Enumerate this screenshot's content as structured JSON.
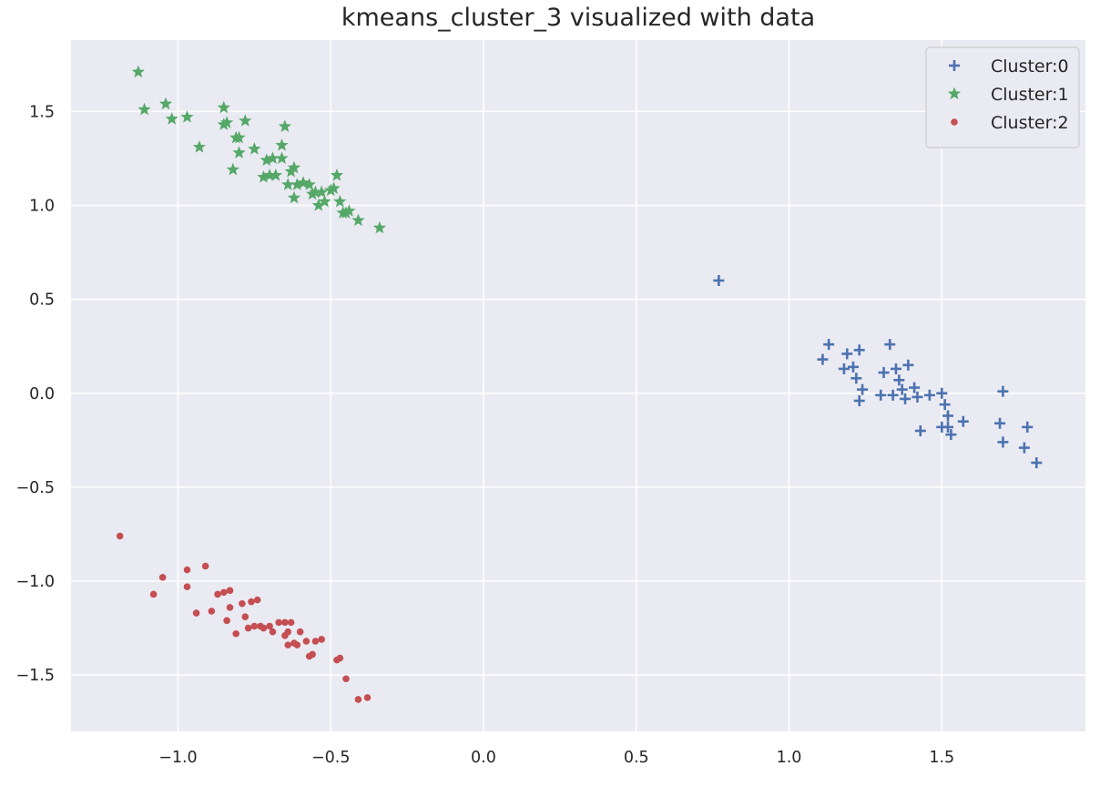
{
  "chart_data": {
    "type": "scatter",
    "title": "kmeans_cluster_3 visualized with data",
    "xlabel": "",
    "ylabel": "",
    "xlim": [
      -1.35,
      1.97
    ],
    "ylim": [
      -1.8,
      1.88
    ],
    "xticks": [
      {
        "value": -1.0,
        "label": "−1.0"
      },
      {
        "value": -0.5,
        "label": "−0.5"
      },
      {
        "value": 0.0,
        "label": "0.0"
      },
      {
        "value": 0.5,
        "label": "0.5"
      },
      {
        "value": 1.0,
        "label": "1.0"
      },
      {
        "value": 1.5,
        "label": "1.5"
      }
    ],
    "yticks": [
      {
        "value": -1.5,
        "label": "−1.5"
      },
      {
        "value": -1.0,
        "label": "−1.0"
      },
      {
        "value": -0.5,
        "label": "−0.5"
      },
      {
        "value": 0.0,
        "label": "0.0"
      },
      {
        "value": 0.5,
        "label": "0.5"
      },
      {
        "value": 1.0,
        "label": "1.0"
      },
      {
        "value": 1.5,
        "label": "1.5"
      }
    ],
    "grid": true,
    "background": "#eaeaf2",
    "legend_position": "top-right",
    "series": [
      {
        "name": "Cluster:0",
        "marker": "plus",
        "color": "#4c72b0",
        "points": [
          [
            0.77,
            0.6
          ],
          [
            1.11,
            0.18
          ],
          [
            1.13,
            0.26
          ],
          [
            1.18,
            0.13
          ],
          [
            1.19,
            0.21
          ],
          [
            1.21,
            0.14
          ],
          [
            1.22,
            0.08
          ],
          [
            1.23,
            0.23
          ],
          [
            1.23,
            -0.04
          ],
          [
            1.24,
            0.02
          ],
          [
            1.3,
            -0.01
          ],
          [
            1.31,
            0.11
          ],
          [
            1.33,
            0.26
          ],
          [
            1.34,
            -0.01
          ],
          [
            1.35,
            0.13
          ],
          [
            1.36,
            0.07
          ],
          [
            1.37,
            0.02
          ],
          [
            1.38,
            -0.03
          ],
          [
            1.39,
            0.15
          ],
          [
            1.41,
            0.03
          ],
          [
            1.42,
            -0.02
          ],
          [
            1.43,
            -0.2
          ],
          [
            1.46,
            -0.01
          ],
          [
            1.5,
            -0.18
          ],
          [
            1.5,
            0.0
          ],
          [
            1.51,
            -0.06
          ],
          [
            1.52,
            -0.12
          ],
          [
            1.52,
            -0.18
          ],
          [
            1.53,
            -0.22
          ],
          [
            1.57,
            -0.15
          ],
          [
            1.69,
            -0.16
          ],
          [
            1.7,
            0.01
          ],
          [
            1.7,
            -0.26
          ],
          [
            1.77,
            -0.29
          ],
          [
            1.78,
            -0.18
          ],
          [
            1.81,
            -0.37
          ]
        ]
      },
      {
        "name": "Cluster:1",
        "marker": "star",
        "color": "#55a868",
        "points": [
          [
            -1.13,
            1.71
          ],
          [
            -1.11,
            1.51
          ],
          [
            -1.04,
            1.54
          ],
          [
            -1.02,
            1.46
          ],
          [
            -0.97,
            1.47
          ],
          [
            -0.93,
            1.31
          ],
          [
            -0.85,
            1.43
          ],
          [
            -0.85,
            1.52
          ],
          [
            -0.84,
            1.44
          ],
          [
            -0.82,
            1.19
          ],
          [
            -0.81,
            1.36
          ],
          [
            -0.8,
            1.28
          ],
          [
            -0.8,
            1.36
          ],
          [
            -0.78,
            1.45
          ],
          [
            -0.75,
            1.3
          ],
          [
            -0.72,
            1.15
          ],
          [
            -0.71,
            1.24
          ],
          [
            -0.7,
            1.16
          ],
          [
            -0.69,
            1.25
          ],
          [
            -0.68,
            1.16
          ],
          [
            -0.66,
            1.32
          ],
          [
            -0.66,
            1.25
          ],
          [
            -0.65,
            1.42
          ],
          [
            -0.64,
            1.11
          ],
          [
            -0.63,
            1.18
          ],
          [
            -0.62,
            1.2
          ],
          [
            -0.62,
            1.04
          ],
          [
            -0.61,
            1.11
          ],
          [
            -0.59,
            1.12
          ],
          [
            -0.57,
            1.11
          ],
          [
            -0.56,
            1.06
          ],
          [
            -0.55,
            1.07
          ],
          [
            -0.54,
            1.0
          ],
          [
            -0.53,
            1.07
          ],
          [
            -0.52,
            1.02
          ],
          [
            -0.5,
            1.08
          ],
          [
            -0.49,
            1.09
          ],
          [
            -0.48,
            1.16
          ],
          [
            -0.47,
            1.02
          ],
          [
            -0.46,
            0.96
          ],
          [
            -0.45,
            0.96
          ],
          [
            -0.44,
            0.97
          ],
          [
            -0.41,
            0.92
          ],
          [
            -0.34,
            0.88
          ]
        ]
      },
      {
        "name": "Cluster:2",
        "marker": "circle",
        "color": "#c44e52",
        "points": [
          [
            -1.19,
            -0.76
          ],
          [
            -1.08,
            -1.07
          ],
          [
            -1.05,
            -0.98
          ],
          [
            -0.97,
            -0.94
          ],
          [
            -0.97,
            -1.03
          ],
          [
            -0.94,
            -1.17
          ],
          [
            -0.91,
            -0.92
          ],
          [
            -0.89,
            -1.16
          ],
          [
            -0.87,
            -1.07
          ],
          [
            -0.85,
            -1.06
          ],
          [
            -0.84,
            -1.21
          ],
          [
            -0.83,
            -1.14
          ],
          [
            -0.83,
            -1.05
          ],
          [
            -0.81,
            -1.28
          ],
          [
            -0.79,
            -1.12
          ],
          [
            -0.78,
            -1.19
          ],
          [
            -0.77,
            -1.25
          ],
          [
            -0.76,
            -1.11
          ],
          [
            -0.75,
            -1.24
          ],
          [
            -0.74,
            -1.1
          ],
          [
            -0.73,
            -1.24
          ],
          [
            -0.72,
            -1.25
          ],
          [
            -0.7,
            -1.24
          ],
          [
            -0.69,
            -1.27
          ],
          [
            -0.67,
            -1.22
          ],
          [
            -0.65,
            -1.29
          ],
          [
            -0.65,
            -1.22
          ],
          [
            -0.64,
            -1.27
          ],
          [
            -0.64,
            -1.34
          ],
          [
            -0.63,
            -1.22
          ],
          [
            -0.62,
            -1.33
          ],
          [
            -0.61,
            -1.34
          ],
          [
            -0.6,
            -1.27
          ],
          [
            -0.58,
            -1.32
          ],
          [
            -0.57,
            -1.4
          ],
          [
            -0.56,
            -1.39
          ],
          [
            -0.55,
            -1.32
          ],
          [
            -0.53,
            -1.31
          ],
          [
            -0.48,
            -1.42
          ],
          [
            -0.47,
            -1.41
          ],
          [
            -0.45,
            -1.52
          ],
          [
            -0.41,
            -1.63
          ],
          [
            -0.38,
            -1.62
          ]
        ]
      }
    ]
  }
}
